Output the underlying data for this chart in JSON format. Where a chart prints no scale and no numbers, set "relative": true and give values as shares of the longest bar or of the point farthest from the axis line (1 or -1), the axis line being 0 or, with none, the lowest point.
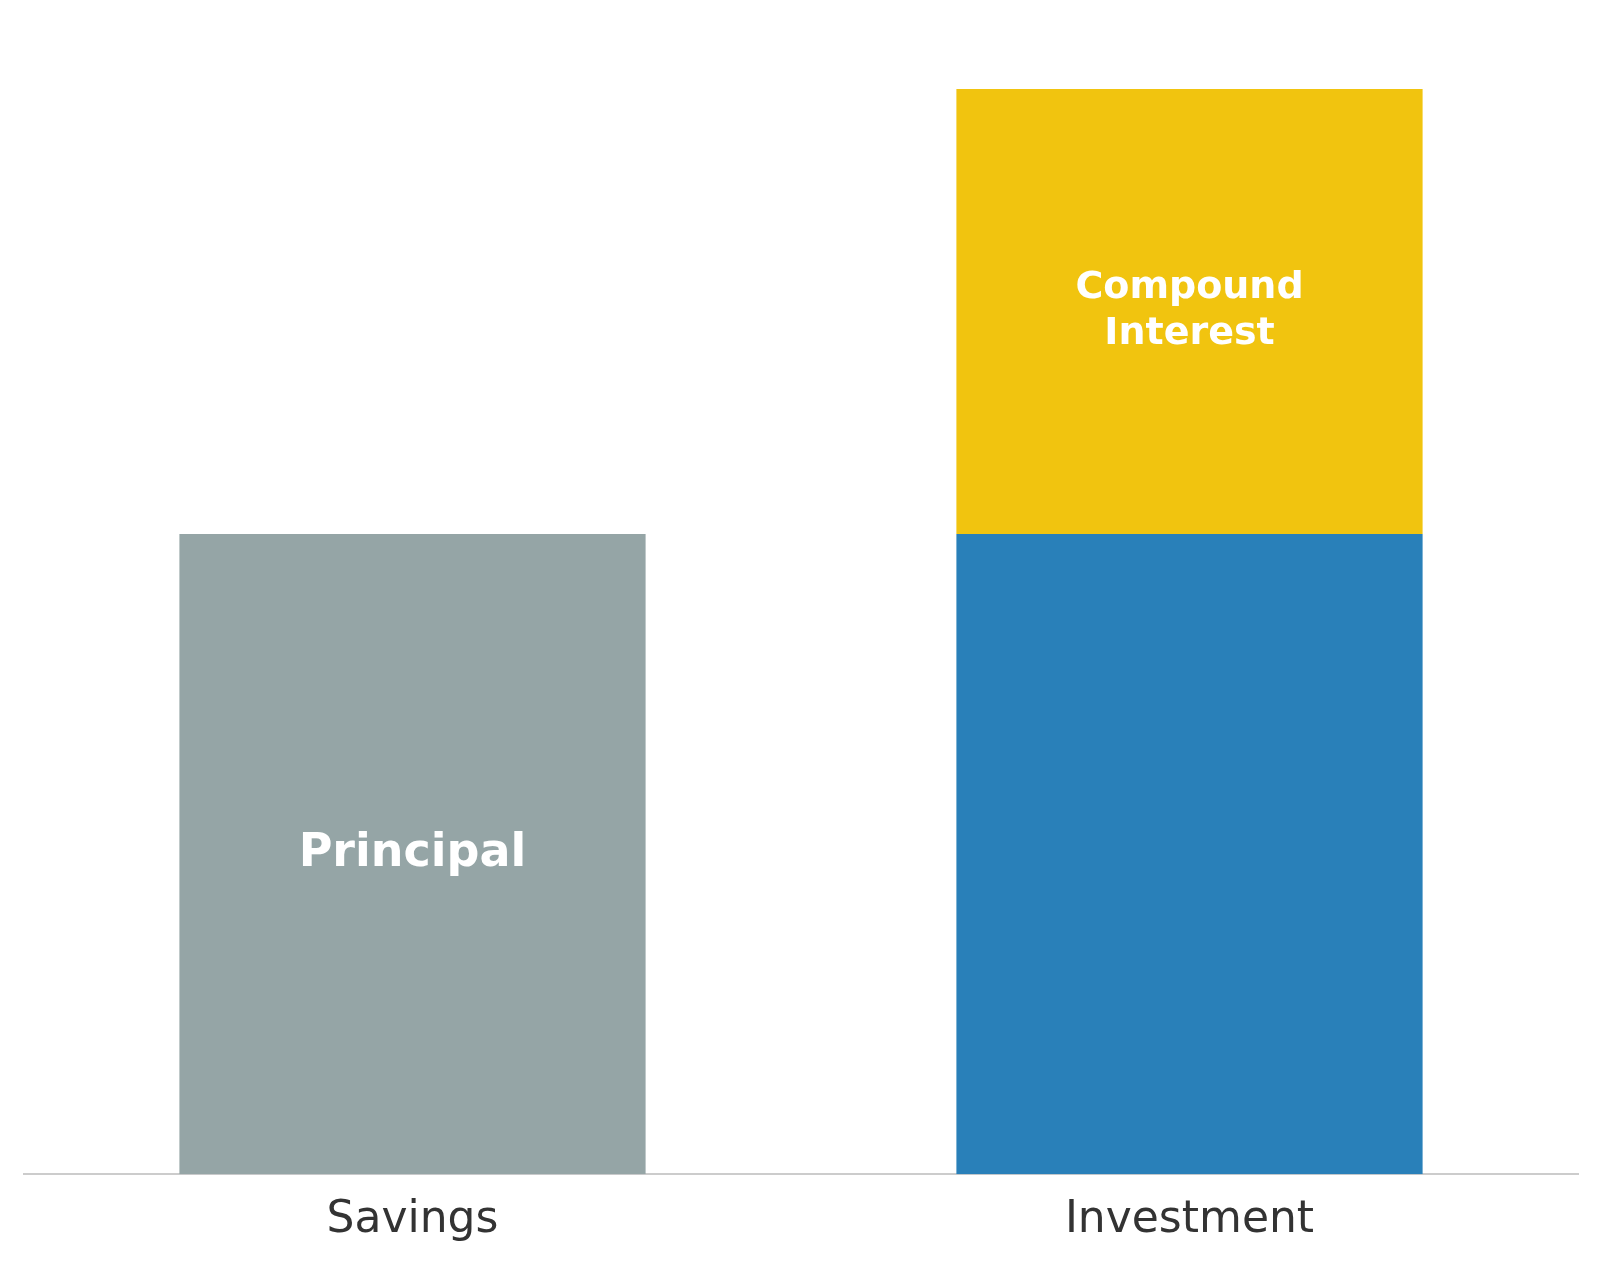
{
  "chart_data": {
    "type": "bar",
    "stacked": true,
    "relative": true,
    "categories": [
      "Savings",
      "Investment"
    ],
    "series": [
      {
        "name": "Principal",
        "color": "#95a5a6",
        "values": [
          0.59,
          null
        ]
      },
      {
        "color": "#2980b9",
        "values": [
          null,
          0.59
        ]
      },
      {
        "name": "Compound Interest",
        "color": "#f1c40f",
        "values": [
          null,
          0.41
        ]
      }
    ],
    "legend": false,
    "grid": false
  }
}
